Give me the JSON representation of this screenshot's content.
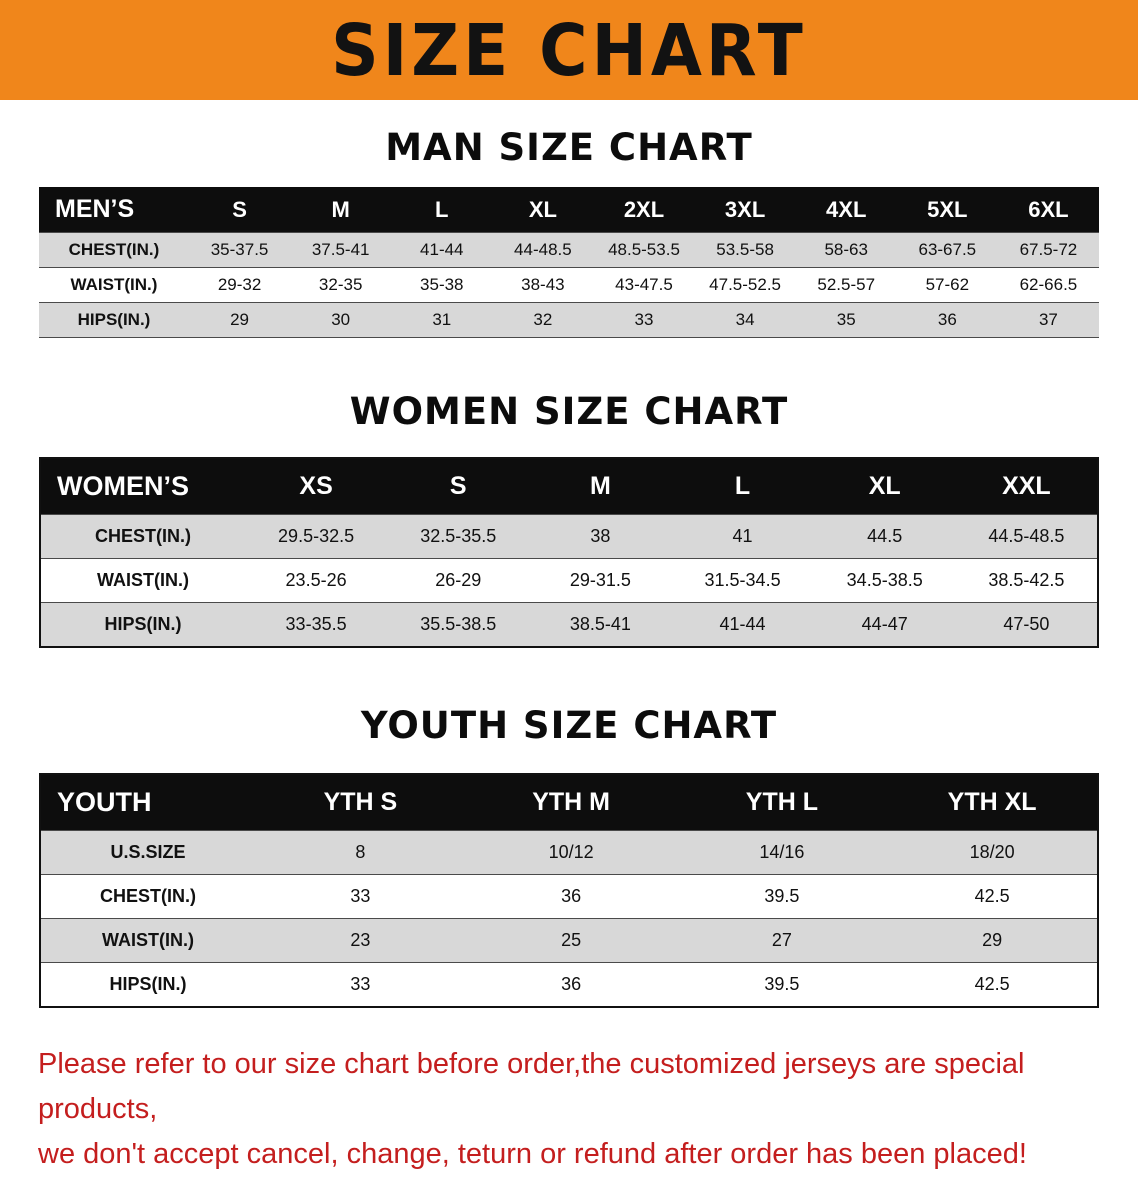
{
  "banner": {
    "title": "SIZE CHART"
  },
  "sections": [
    {
      "heading": "MAN SIZE CHART",
      "table": {
        "header": [
          "MEN’S",
          "S",
          "M",
          "L",
          "XL",
          "2XL",
          "3XL",
          "4XL",
          "5XL",
          "6XL"
        ],
        "rows": [
          [
            "CHEST(IN.)",
            "35-37.5",
            "37.5-41",
            "41-44",
            "44-48.5",
            "48.5-53.5",
            "53.5-58",
            "58-63",
            "63-67.5",
            "67.5-72"
          ],
          [
            "WAIST(IN.)",
            "29-32",
            "32-35",
            "35-38",
            "38-43",
            "43-47.5",
            "47.5-52.5",
            "52.5-57",
            "57-62",
            "62-66.5"
          ],
          [
            "HIPS(IN.)",
            "29",
            "30",
            "31",
            "32",
            "33",
            "34",
            "35",
            "36",
            "37"
          ]
        ]
      }
    },
    {
      "heading": "WOMEN SIZE CHART",
      "table": {
        "header": [
          "WOMEN’S",
          "XS",
          "S",
          "M",
          "L",
          "XL",
          "XXL"
        ],
        "rows": [
          [
            "CHEST(IN.)",
            "29.5-32.5",
            "32.5-35.5",
            "38",
            "41",
            "44.5",
            "44.5-48.5"
          ],
          [
            "WAIST(IN.)",
            "23.5-26",
            "26-29",
            "29-31.5",
            "31.5-34.5",
            "34.5-38.5",
            "38.5-42.5"
          ],
          [
            "HIPS(IN.)",
            "33-35.5",
            "35.5-38.5",
            "38.5-41",
            "41-44",
            "44-47",
            "47-50"
          ]
        ]
      }
    },
    {
      "heading": "YOUTH SIZE CHART",
      "table": {
        "header": [
          "YOUTH",
          "YTH S",
          "YTH M",
          "YTH L",
          "YTH XL"
        ],
        "rows": [
          [
            "U.S.SIZE",
            "8",
            "10/12",
            "14/16",
            "18/20"
          ],
          [
            "CHEST(IN.)",
            "33",
            "36",
            "39.5",
            "42.5"
          ],
          [
            "WAIST(IN.)",
            "23",
            "25",
            "27",
            "29"
          ],
          [
            "HIPS(IN.)",
            "33",
            "36",
            "39.5",
            "42.5"
          ]
        ]
      }
    }
  ],
  "footer": {
    "line1": "Please refer to our size chart before order,the customized jerseys are special products,",
    "line2": "we don't accept cancel, change, teturn or refund after order has been placed!"
  },
  "colors": {
    "banner_orange": "#F0861B",
    "header_black": "#0d0d0d",
    "stripe_gray": "#d8d8d8",
    "disclaimer_red": "#C41E1E"
  }
}
